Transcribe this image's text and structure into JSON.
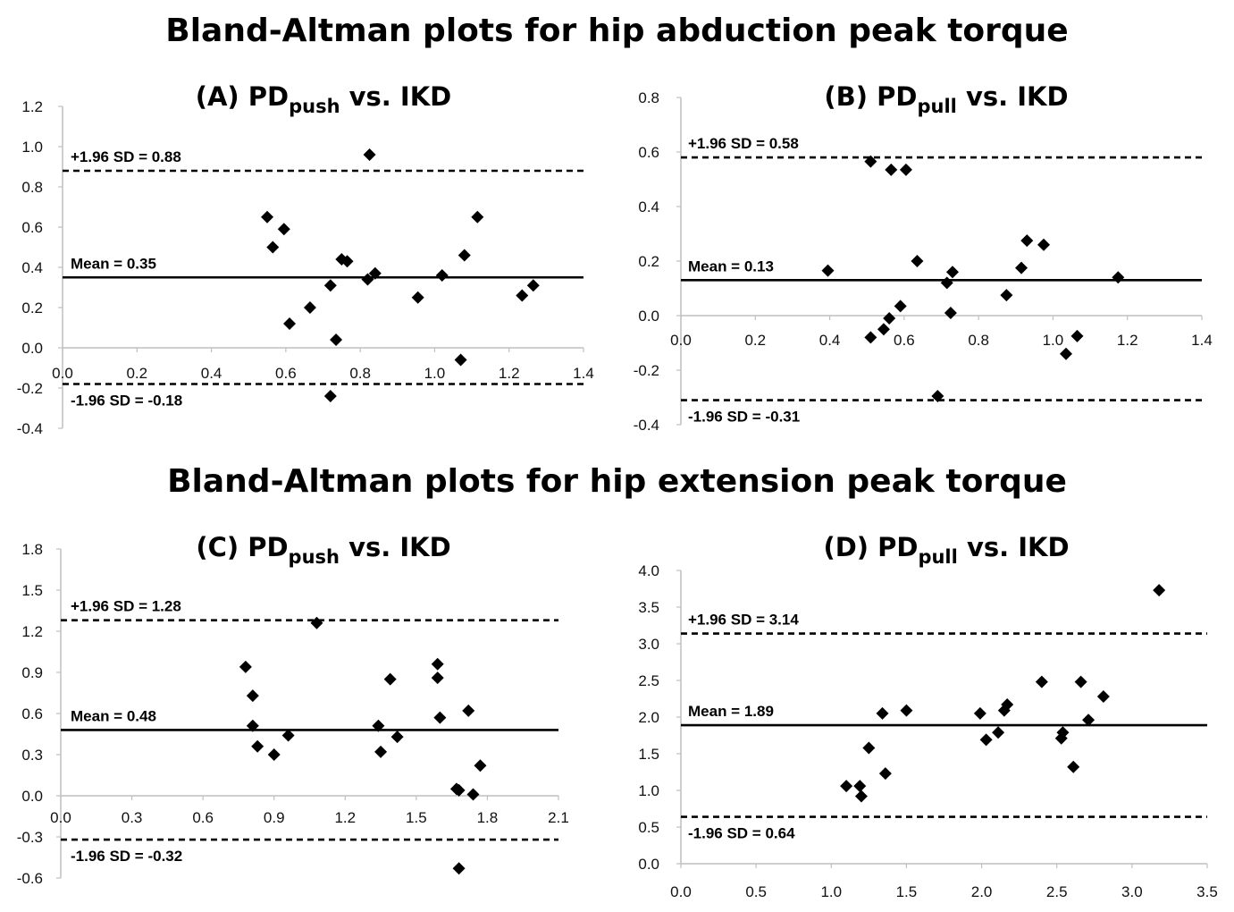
{
  "titles": {
    "abduction": "Bland-Altman plots for hip abduction peak torque",
    "extension": "Bland-Altman plots for hip extension peak torque"
  },
  "colors": {
    "marker": "#000000",
    "axis": "#bfbfbf",
    "line": "#000000"
  },
  "chart_data": [
    {
      "id": "A",
      "type": "scatter",
      "title": {
        "prefix": "(A) PD",
        "sub": "push",
        "suffix": " vs. IKD"
      },
      "xlim": [
        0,
        1.4
      ],
      "ylim": [
        -0.4,
        1.2
      ],
      "xticks": [
        "0.0",
        "0.2",
        "0.4",
        "0.6",
        "0.8",
        "1.0",
        "1.2",
        "1.4"
      ],
      "yticks": [
        "-0.4",
        "-0.2",
        "0.0",
        "0.2",
        "0.4",
        "0.6",
        "0.8",
        "1.0",
        "1.2"
      ],
      "mean": {
        "value": 0.35,
        "label": "Mean = 0.35"
      },
      "upper": {
        "value": 0.88,
        "label": "+1.96 SD = 0.88"
      },
      "lower": {
        "value": -0.18,
        "label": "-1.96 SD = -0.18"
      },
      "points": [
        [
          0.55,
          0.65
        ],
        [
          0.565,
          0.5
        ],
        [
          0.595,
          0.59
        ],
        [
          0.61,
          0.12
        ],
        [
          0.665,
          0.2
        ],
        [
          0.72,
          0.31
        ],
        [
          0.72,
          -0.24
        ],
        [
          0.735,
          0.04
        ],
        [
          0.75,
          0.44
        ],
        [
          0.765,
          0.43
        ],
        [
          0.82,
          0.34
        ],
        [
          0.825,
          0.96
        ],
        [
          0.84,
          0.37
        ],
        [
          0.955,
          0.25
        ],
        [
          1.02,
          0.36
        ],
        [
          1.07,
          -0.06
        ],
        [
          1.08,
          0.46
        ],
        [
          1.115,
          0.65
        ],
        [
          1.235,
          0.26
        ],
        [
          1.265,
          0.31
        ]
      ]
    },
    {
      "id": "B",
      "type": "scatter",
      "title": {
        "prefix": "(B) PD",
        "sub": "pull",
        "suffix": " vs. IKD"
      },
      "xlim": [
        0,
        1.4
      ],
      "ylim": [
        -0.4,
        0.8
      ],
      "xticks": [
        "0.0",
        "0.2",
        "0.4",
        "0.6",
        "0.8",
        "1.0",
        "1.2",
        "1.4"
      ],
      "yticks": [
        "-0.4",
        "-0.2",
        "0.0",
        "0.2",
        "0.4",
        "0.6",
        "0.8"
      ],
      "mean": {
        "value": 0.13,
        "label": "Mean = 0.13"
      },
      "upper": {
        "value": 0.58,
        "label": "+1.96 SD = 0.58"
      },
      "lower": {
        "value": -0.31,
        "label": "-1.96 SD = -0.31"
      },
      "points": [
        [
          0.395,
          0.165
        ],
        [
          0.51,
          -0.08
        ],
        [
          0.51,
          0.565
        ],
        [
          0.545,
          -0.05
        ],
        [
          0.56,
          -0.01
        ],
        [
          0.565,
          0.535
        ],
        [
          0.59,
          0.035
        ],
        [
          0.605,
          0.535
        ],
        [
          0.635,
          0.2
        ],
        [
          0.69,
          -0.295
        ],
        [
          0.715,
          0.12
        ],
        [
          0.725,
          0.01
        ],
        [
          0.73,
          0.16
        ],
        [
          0.875,
          0.075
        ],
        [
          0.915,
          0.175
        ],
        [
          0.93,
          0.275
        ],
        [
          0.975,
          0.26
        ],
        [
          1.035,
          -0.14
        ],
        [
          1.065,
          -0.075
        ],
        [
          1.175,
          0.14
        ]
      ]
    },
    {
      "id": "C",
      "type": "scatter",
      "title": {
        "prefix": "(C) PD",
        "sub": "push",
        "suffix": " vs. IKD"
      },
      "xlim": [
        0,
        2.1
      ],
      "ylim": [
        -0.6,
        1.8
      ],
      "xticks": [
        "0.0",
        "0.3",
        "0.6",
        "0.9",
        "1.2",
        "1.5",
        "1.8",
        "2.1"
      ],
      "yticks": [
        "-0.6",
        "-0.3",
        "0.0",
        "0.3",
        "0.6",
        "0.9",
        "1.2",
        "1.5",
        "1.8"
      ],
      "mean": {
        "value": 0.48,
        "label": "Mean = 0.48"
      },
      "upper": {
        "value": 1.28,
        "label": "+1.96 SD = 1.28"
      },
      "lower": {
        "value": -0.32,
        "label": "-1.96 SD = -0.32"
      },
      "points": [
        [
          0.78,
          0.94
        ],
        [
          0.81,
          0.73
        ],
        [
          0.81,
          0.51
        ],
        [
          0.83,
          0.36
        ],
        [
          0.9,
          0.3
        ],
        [
          0.96,
          0.44
        ],
        [
          1.08,
          1.26
        ],
        [
          1.34,
          0.51
        ],
        [
          1.35,
          0.32
        ],
        [
          1.39,
          0.85
        ],
        [
          1.42,
          0.43
        ],
        [
          1.59,
          0.96
        ],
        [
          1.59,
          0.86
        ],
        [
          1.6,
          0.57
        ],
        [
          1.67,
          0.05
        ],
        [
          1.68,
          0.04
        ],
        [
          1.68,
          -0.53
        ],
        [
          1.72,
          0.62
        ],
        [
          1.74,
          0.01
        ],
        [
          1.77,
          0.22
        ]
      ]
    },
    {
      "id": "D",
      "type": "scatter",
      "title": {
        "prefix": "(D) PD",
        "sub": "pull",
        "suffix": " vs. IKD"
      },
      "xlim": [
        0,
        3.5
      ],
      "ylim": [
        0,
        4.0
      ],
      "xticks": [
        "0.0",
        "0.5",
        "1.0",
        "1.5",
        "2.0",
        "2.5",
        "3.0",
        "3.5"
      ],
      "yticks": [
        "0.0",
        "0.5",
        "1.0",
        "1.5",
        "2.0",
        "2.5",
        "3.0",
        "3.5",
        "4.0"
      ],
      "mean": {
        "value": 1.89,
        "label": "Mean = 1.89"
      },
      "upper": {
        "value": 3.14,
        "label": "+1.96 SD = 3.14"
      },
      "lower": {
        "value": 0.64,
        "label": "-1.96 SD = 0.64"
      },
      "points": [
        [
          1.1,
          1.06
        ],
        [
          1.19,
          1.06
        ],
        [
          1.2,
          0.92
        ],
        [
          1.25,
          1.58
        ],
        [
          1.34,
          2.05
        ],
        [
          1.36,
          1.23
        ],
        [
          1.5,
          2.09
        ],
        [
          1.99,
          2.05
        ],
        [
          2.03,
          1.69
        ],
        [
          2.11,
          1.79
        ],
        [
          2.15,
          2.09
        ],
        [
          2.17,
          2.17
        ],
        [
          2.4,
          2.48
        ],
        [
          2.53,
          1.71
        ],
        [
          2.54,
          1.79
        ],
        [
          2.61,
          1.32
        ],
        [
          2.66,
          2.48
        ],
        [
          2.71,
          1.96
        ],
        [
          2.81,
          2.28
        ],
        [
          3.18,
          3.73
        ]
      ]
    }
  ]
}
